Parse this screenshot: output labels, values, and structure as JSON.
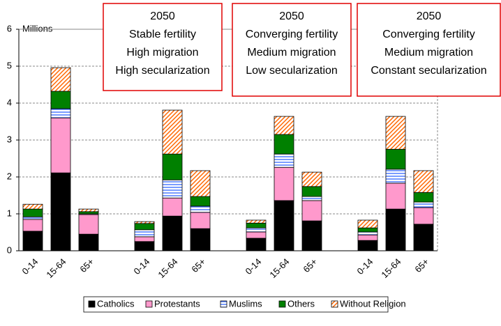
{
  "chart_data": {
    "type": "stacked-bar",
    "y_label": "Millions",
    "categories": [
      "0-14",
      "15-64",
      "65+",
      null,
      "0-14",
      "15-64",
      "65+",
      null,
      "0-14",
      "15-64",
      "65+",
      null,
      "0-14",
      "15-64",
      "65+"
    ],
    "series": [
      {
        "name": "Catholics",
        "color": "#000000",
        "pattern": "solid",
        "values": [
          0.53,
          2.11,
          0.45,
          null,
          0.25,
          0.94,
          0.6,
          null,
          0.34,
          1.36,
          0.81,
          null,
          0.28,
          1.13,
          0.72
        ]
      },
      {
        "name": "Protestants",
        "color": "#ff99cc",
        "pattern": "solid",
        "values": [
          0.32,
          1.49,
          0.53,
          null,
          0.13,
          0.49,
          0.44,
          null,
          0.17,
          0.9,
          0.55,
          null,
          0.15,
          0.7,
          0.45
        ]
      },
      {
        "name": "Muslims",
        "color": "#3366ff",
        "pattern": "horizontal",
        "values": [
          0.07,
          0.25,
          0.02,
          null,
          0.19,
          0.49,
          0.17,
          null,
          0.11,
          0.36,
          0.11,
          null,
          0.08,
          0.38,
          0.15
        ]
      },
      {
        "name": "Others",
        "color": "#008000",
        "pattern": "solid",
        "values": [
          0.21,
          0.47,
          0.06,
          null,
          0.17,
          0.7,
          0.26,
          null,
          0.13,
          0.53,
          0.27,
          null,
          0.11,
          0.54,
          0.26
        ]
      },
      {
        "name": "Without Religion",
        "color": "#ff6600",
        "pattern": "diagonal",
        "values": [
          0.13,
          0.64,
          0.07,
          null,
          0.05,
          1.19,
          0.7,
          null,
          0.08,
          0.49,
          0.39,
          null,
          0.21,
          0.89,
          0.59
        ]
      }
    ],
    "ylim": [
      0,
      6
    ],
    "yticks": [
      0,
      1,
      2,
      3,
      4,
      5,
      6
    ],
    "grid": true,
    "annotations": [
      {
        "lines": [
          "2050",
          "Stable fertility",
          "High migration",
          "High secularization"
        ]
      },
      {
        "lines": [
          "2050",
          "Converging fertility",
          "Medium migration",
          "Low secularization"
        ]
      },
      {
        "lines": [
          "2050",
          "Converging fertility",
          "Medium migration",
          "Constant secularization"
        ]
      }
    ]
  }
}
